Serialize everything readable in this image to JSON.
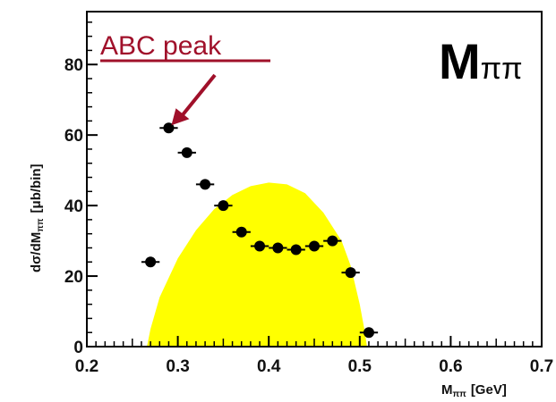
{
  "chart_data": {
    "type": "scatter",
    "xlabel": "M",
    "xlabel_sub": "ππ",
    "xlabel_unit": "[GeV]",
    "ylabel": "dσ/dM",
    "ylabel_sub": "ππ",
    "ylabel_unit": "[μb/bin]",
    "panel_label": "M",
    "panel_label_sub": "ππ",
    "xlim": [
      0.2,
      0.7
    ],
    "ylim": [
      0,
      95
    ],
    "x_ticks": [
      0.2,
      0.3,
      0.4,
      0.5,
      0.6,
      0.7
    ],
    "x_tick_labels": [
      "0.2",
      "0.3",
      "0.4",
      "0.5",
      "0.6",
      "0.7"
    ],
    "y_ticks": [
      0,
      20,
      40,
      60,
      80
    ],
    "y_tick_labels": [
      "0",
      "20",
      "40",
      "60",
      "80"
    ],
    "grid": false,
    "series": [
      {
        "type": "scatter",
        "marker_color": "#000000",
        "x_error": 0.01,
        "points": [
          {
            "x": 0.27,
            "y": 24
          },
          {
            "x": 0.29,
            "y": 62
          },
          {
            "x": 0.31,
            "y": 55
          },
          {
            "x": 0.33,
            "y": 46
          },
          {
            "x": 0.35,
            "y": 40
          },
          {
            "x": 0.37,
            "y": 32.5
          },
          {
            "x": 0.39,
            "y": 28.5
          },
          {
            "x": 0.41,
            "y": 28
          },
          {
            "x": 0.43,
            "y": 27.5
          },
          {
            "x": 0.45,
            "y": 28.5
          },
          {
            "x": 0.47,
            "y": 30
          },
          {
            "x": 0.49,
            "y": 21
          },
          {
            "x": 0.51,
            "y": 4
          }
        ]
      },
      {
        "type": "area",
        "fill_color": "#ffff00",
        "points": [
          {
            "x": 0.266,
            "y": 0
          },
          {
            "x": 0.27,
            "y": 5
          },
          {
            "x": 0.28,
            "y": 14
          },
          {
            "x": 0.3,
            "y": 25
          },
          {
            "x": 0.32,
            "y": 33
          },
          {
            "x": 0.34,
            "y": 39
          },
          {
            "x": 0.36,
            "y": 43
          },
          {
            "x": 0.38,
            "y": 45.5
          },
          {
            "x": 0.4,
            "y": 46.5
          },
          {
            "x": 0.42,
            "y": 46
          },
          {
            "x": 0.44,
            "y": 43.5
          },
          {
            "x": 0.46,
            "y": 38
          },
          {
            "x": 0.48,
            "y": 30
          },
          {
            "x": 0.49,
            "y": 23
          },
          {
            "x": 0.5,
            "y": 12
          },
          {
            "x": 0.505,
            "y": 5
          },
          {
            "x": 0.508,
            "y": 0
          }
        ]
      }
    ],
    "annotation": {
      "text": "ABC peak",
      "color": "#a0102a",
      "target": {
        "x": 0.29,
        "y": 62
      }
    }
  }
}
